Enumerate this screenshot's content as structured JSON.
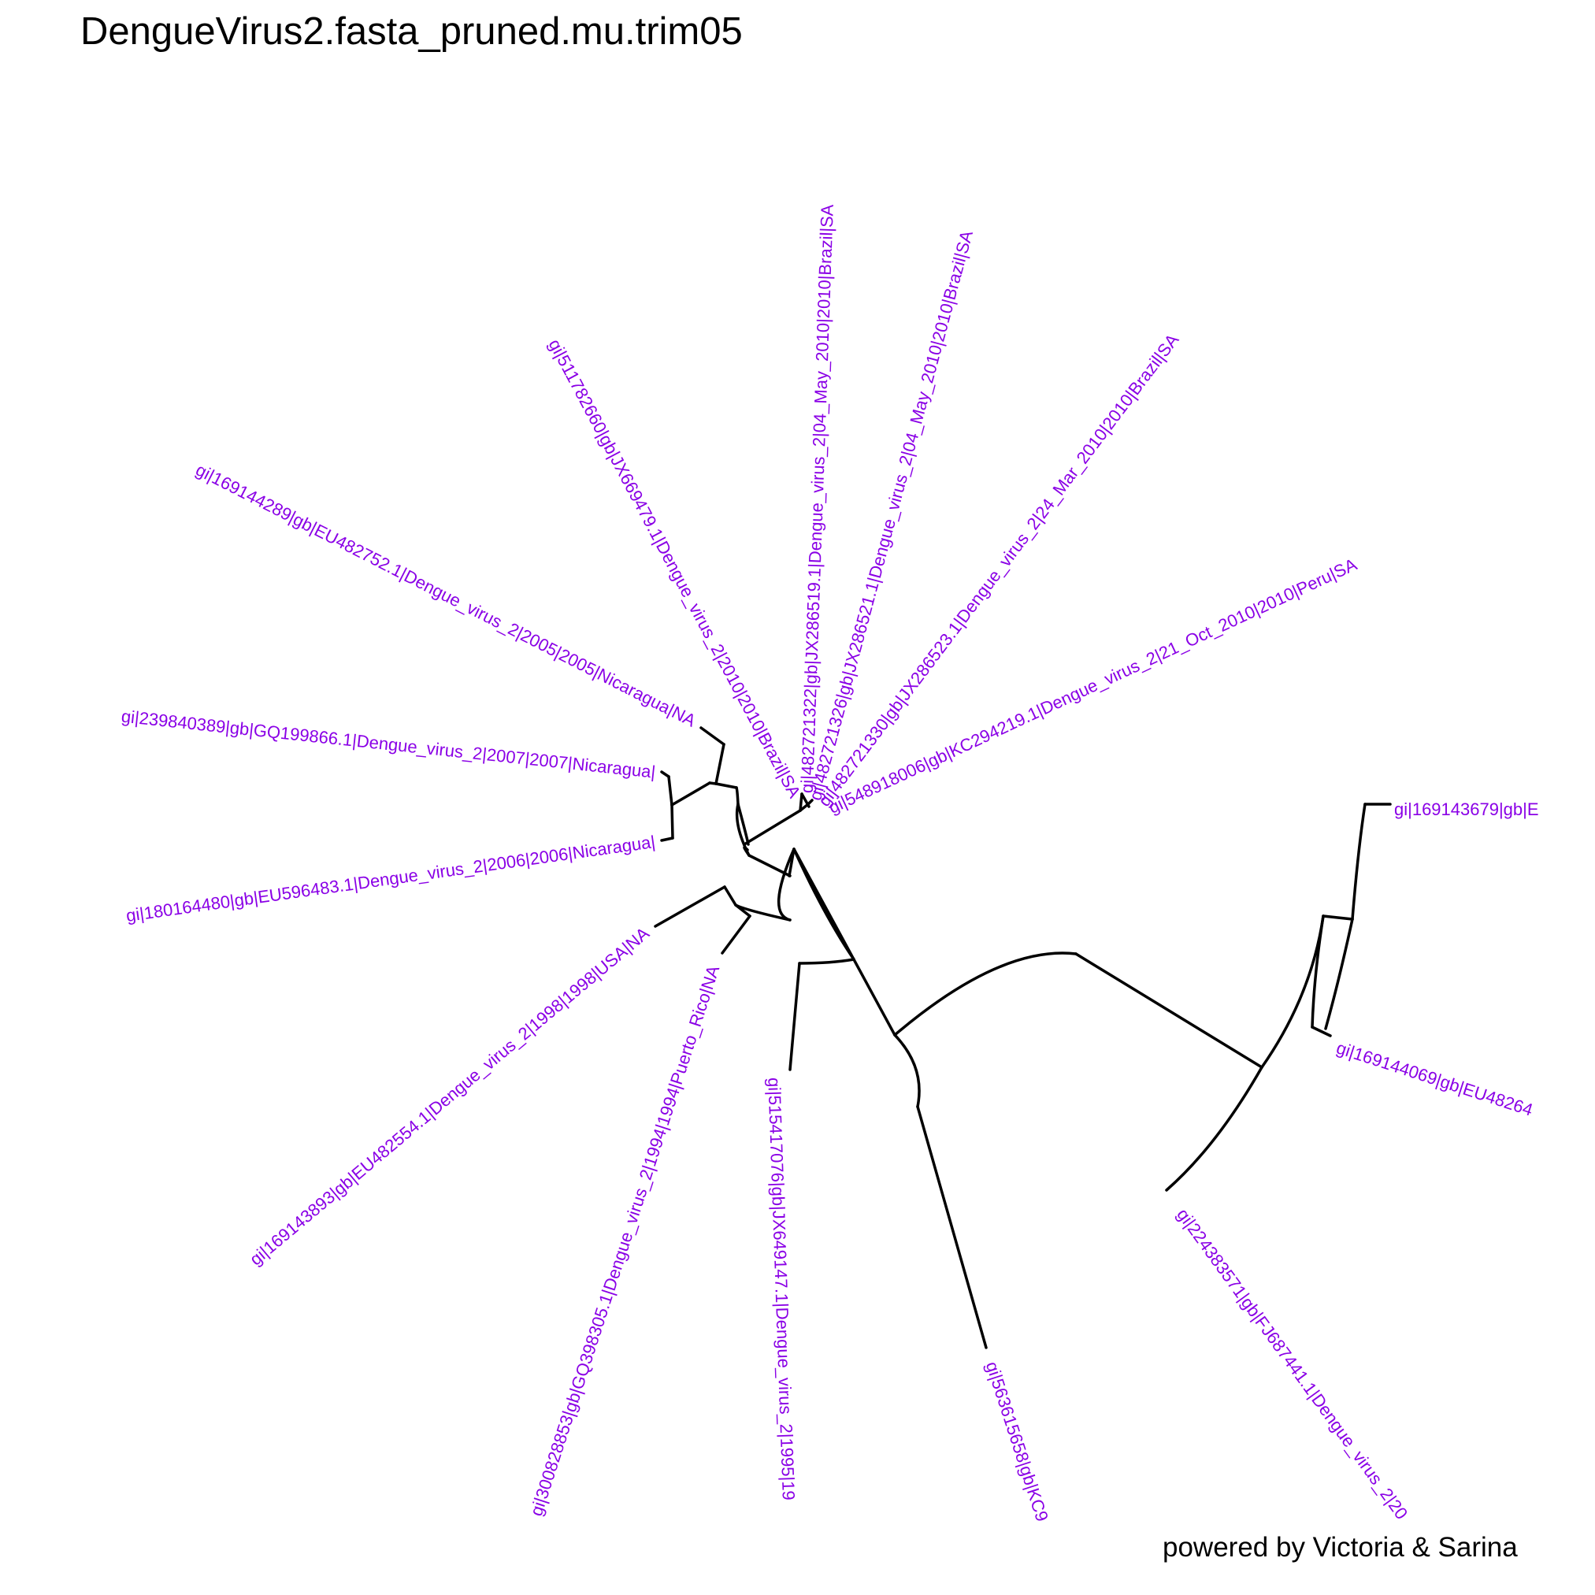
{
  "title": "DengueVirus2.fasta_pruned.mu.trim05",
  "footer": "powered by Victoria & Sarina",
  "colors": {
    "branch": "#000000",
    "tip_label": "#8a00e6",
    "background": "#ffffff"
  },
  "tree": {
    "layout": "circular",
    "tips": [
      {
        "id": "t1",
        "label": "gi|169143679|gb|E"
      },
      {
        "id": "t2",
        "label": "gi|169144069|gb|EU48264"
      },
      {
        "id": "t3",
        "label": "gi|224383571|gb|FJ687441.1|Dengue_virus_2|20"
      },
      {
        "id": "t4",
        "label": "gi|563615658|gb|KC9"
      },
      {
        "id": "t5",
        "label": "gi|515417076|gb|JX649147.1|Dengue_virus_2|1995|19"
      },
      {
        "id": "t6",
        "label": "gi|300828853|gb|GQ398305.1|Dengue_virus_2|1994|1994|Puerto_Rico|NA"
      },
      {
        "id": "t7",
        "label": "gi|169143893|gb|EU482554.1|Dengue_virus_2|1998|1998|USA|NA"
      },
      {
        "id": "t8",
        "label": "gi|180164480|gb|EU596483.1|Dengue_virus_2|2006|2006|Nicaragua|"
      },
      {
        "id": "t9",
        "label": "gi|239840389|gb|GQ199866.1|Dengue_virus_2|2007|2007|Nicaragua|"
      },
      {
        "id": "t10",
        "label": "gi|169144289|gb|EU482752.1|Dengue_virus_2|2005|2005|Nicaragua|NA"
      },
      {
        "id": "t11",
        "label": "gi|511782660|gb|JX669479.1|Dengue_virus_2|2010|2010|Brazil|SA"
      },
      {
        "id": "t12",
        "label": "gi|482721322|gb|JX286519.1|Dengue_virus_2|04_May_2010|2010|Brazil|SA"
      },
      {
        "id": "t13",
        "label": "gi|482721326|gb|JX286521.1|Dengue_virus_2|04_May_2010|2010|Brazil|SA"
      },
      {
        "id": "t14",
        "label": "gi|482721330|gb|JX286523.1|Dengue_virus_2|24_Mar_2010|2010|Brazil|SA"
      },
      {
        "id": "t15",
        "label": "gi|548918006|gb|KC294219.1|Dengue_virus_2|21_Oct_2010|2010|Peru|SA"
      }
    ]
  }
}
